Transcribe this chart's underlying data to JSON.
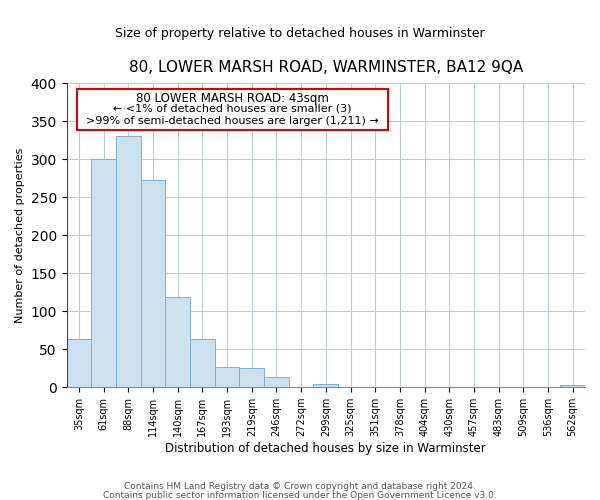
{
  "title": "80, LOWER MARSH ROAD, WARMINSTER, BA12 9QA",
  "subtitle": "Size of property relative to detached houses in Warminster",
  "xlabel": "Distribution of detached houses by size in Warminster",
  "ylabel": "Number of detached properties",
  "bar_color": "#cce0f0",
  "bar_edge_color": "#7ab0d4",
  "highlight_color": "#dd0000",
  "categories": [
    "35sqm",
    "61sqm",
    "88sqm",
    "114sqm",
    "140sqm",
    "167sqm",
    "193sqm",
    "219sqm",
    "246sqm",
    "272sqm",
    "299sqm",
    "325sqm",
    "351sqm",
    "378sqm",
    "404sqm",
    "430sqm",
    "457sqm",
    "483sqm",
    "509sqm",
    "536sqm",
    "562sqm"
  ],
  "values": [
    63,
    300,
    330,
    272,
    119,
    64,
    27,
    25,
    13,
    0,
    4,
    0,
    0,
    0,
    0,
    0,
    0,
    0,
    0,
    0,
    3
  ],
  "ylim": [
    0,
    400
  ],
  "yticks": [
    0,
    50,
    100,
    150,
    200,
    250,
    300,
    350,
    400
  ],
  "annotation_title": "80 LOWER MARSH ROAD: 43sqm",
  "annotation_line1": "← <1% of detached houses are smaller (3)",
  "annotation_line2": ">99% of semi-detached houses are larger (1,211) →",
  "footer1": "Contains HM Land Registry data © Crown copyright and database right 2024.",
  "footer2": "Contains public sector information licensed under the Open Government Licence v3.0."
}
